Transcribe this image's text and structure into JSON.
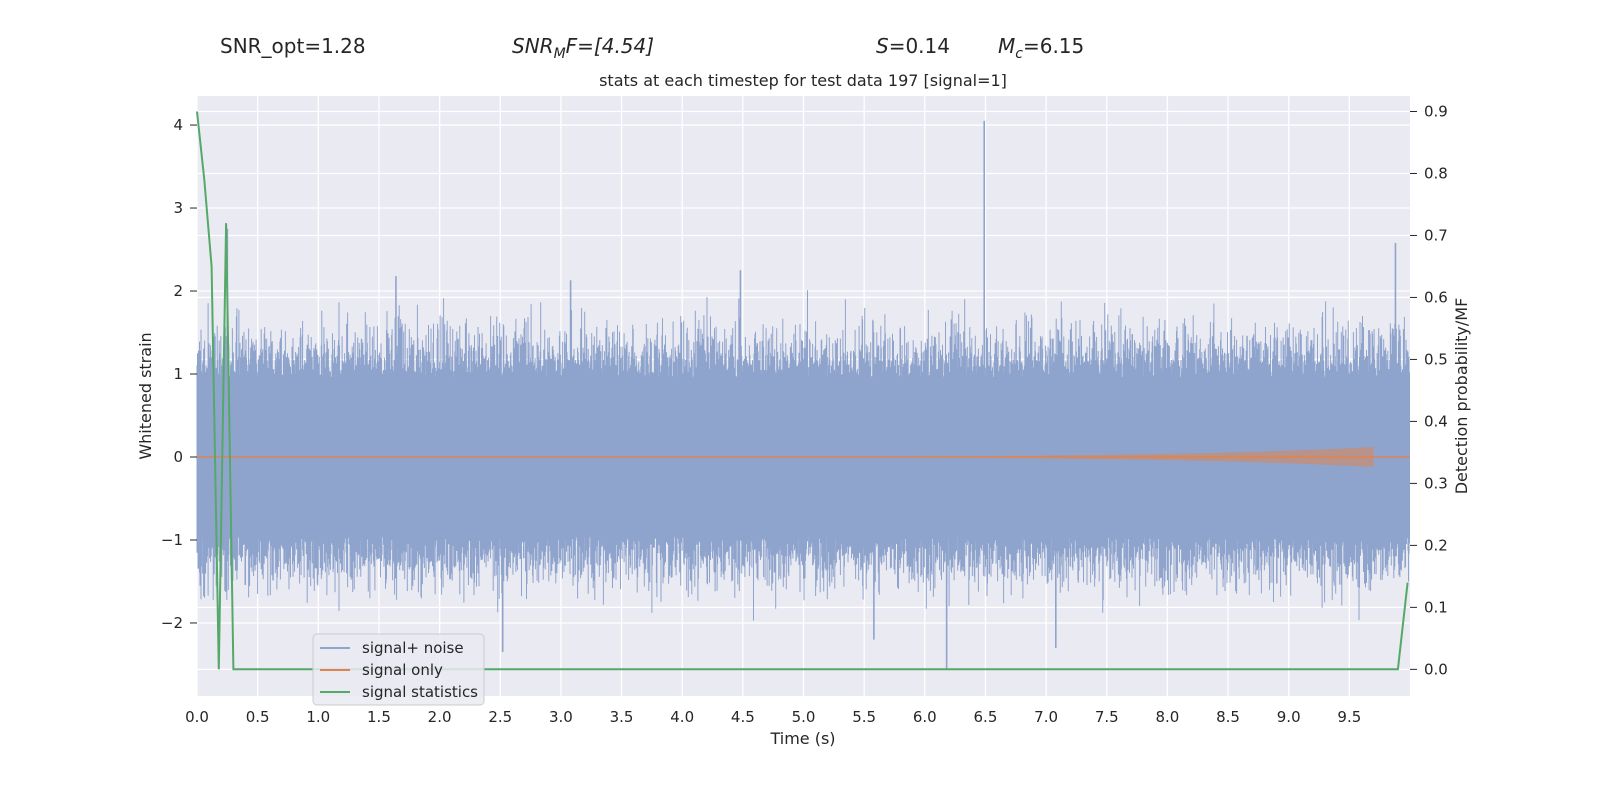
{
  "chart_data": {
    "type": "line",
    "title": "stats at each timestep for test data 197 [signal=1]",
    "header": {
      "snr_opt": "SNR_opt=1.28",
      "snr_mf_base": "SNR",
      "snr_mf_sub": "M",
      "snr_mf_rest": "F=[4.54]",
      "s_var": "S",
      "s_rest": "=0.14",
      "mc_var": "M",
      "mc_sub": "c",
      "mc_rest": "=6.15"
    },
    "xlabel": "Time (s)",
    "ylabel_left": "Whitened strain",
    "ylabel_right": "Detection probability/MF",
    "xlim": [
      0.0,
      10.0
    ],
    "ylim_left": [
      -2.88,
      4.35
    ],
    "ylim_right": [
      -0.043,
      0.925
    ],
    "x_ticks": [
      "0.0",
      "0.5",
      "1.0",
      "1.5",
      "2.0",
      "2.5",
      "3.0",
      "3.5",
      "4.0",
      "4.5",
      "5.0",
      "5.5",
      "6.0",
      "6.5",
      "7.0",
      "7.5",
      "8.0",
      "8.5",
      "9.0",
      "9.5"
    ],
    "y_left_ticks": [
      "4",
      "3",
      "2",
      "1",
      "0",
      "−1",
      "−2"
    ],
    "y_left_values": [
      4,
      3,
      2,
      1,
      0,
      -1,
      -2
    ],
    "y_right_ticks": [
      "0.9",
      "0.8",
      "0.7",
      "0.6",
      "0.5",
      "0.4",
      "0.3",
      "0.2",
      "0.1",
      "0.0"
    ],
    "y_right_values": [
      0.9,
      0.8,
      0.7,
      0.6,
      0.5,
      0.4,
      0.3,
      0.2,
      0.1,
      0.0
    ],
    "legend": {
      "position": "lower-left",
      "entries": [
        {
          "label": "signal+ noise",
          "color": "#8fa4cc"
        },
        {
          "label": "signal only",
          "color": "#dd8452"
        },
        {
          "label": "signal statistics",
          "color": "#55a868"
        }
      ]
    },
    "series": [
      {
        "name": "signal+ noise",
        "axis": "left",
        "color": "#8fa4cc",
        "style": "dense-noise",
        "band": [
          -1.05,
          1.05
        ],
        "peaks": [
          {
            "x": 6.49,
            "y": 4.05
          },
          {
            "x": 9.88,
            "y": 2.58
          },
          {
            "x": 0.25,
            "y": 2.75
          },
          {
            "x": 4.48,
            "y": 2.25
          },
          {
            "x": 3.08,
            "y": 2.13
          },
          {
            "x": 1.64,
            "y": 2.18
          },
          {
            "x": 6.18,
            "y": -2.55
          },
          {
            "x": 2.52,
            "y": -2.35
          },
          {
            "x": 5.58,
            "y": -2.2
          },
          {
            "x": 7.08,
            "y": -2.3
          }
        ]
      },
      {
        "name": "signal only",
        "axis": "left",
        "color": "#dd8452",
        "style": "chirp",
        "end_x": 9.7,
        "peak_amplitude": 0.12
      },
      {
        "name": "signal statistics",
        "axis": "right",
        "color": "#55a868",
        "x": [
          0.0,
          0.06,
          0.12,
          0.18,
          0.24,
          0.3,
          9.8,
          9.9,
          9.98
        ],
        "y": [
          0.9,
          0.79,
          0.65,
          0.0,
          0.72,
          0.0,
          0.0,
          0.0,
          0.14
        ]
      }
    ]
  }
}
